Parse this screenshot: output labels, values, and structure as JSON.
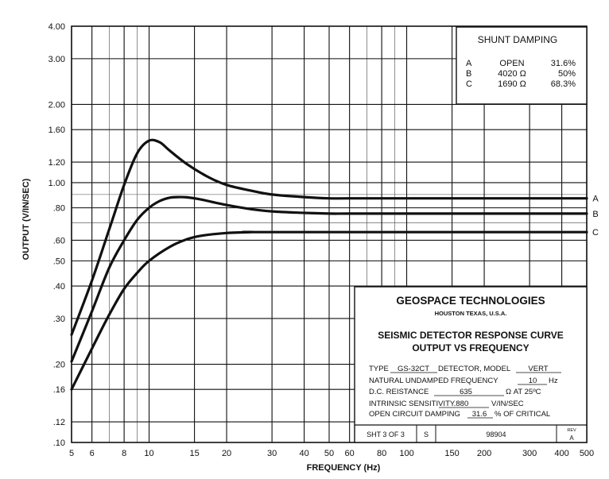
{
  "chart_data": {
    "type": "line",
    "xlabel": "FREQUENCY (Hz)",
    "ylabel": "OUTPUT (V/IN/SEC)",
    "xscale": "log",
    "yscale": "log",
    "xlim": [
      5,
      500
    ],
    "ylim": [
      0.1,
      4.0
    ],
    "grid": true,
    "x_ticks": [
      5,
      6,
      8,
      10,
      15,
      20,
      30,
      40,
      50,
      60,
      80,
      100,
      150,
      200,
      300,
      400,
      500
    ],
    "x_tick_labels": [
      "5",
      "6",
      "8",
      "10",
      "15",
      "20",
      "30",
      "40",
      "50",
      "60",
      "80",
      "100",
      "150",
      "200",
      "300",
      "400",
      "500"
    ],
    "y_ticks": [
      0.1,
      0.12,
      0.16,
      0.2,
      0.3,
      0.4,
      0.5,
      0.6,
      0.8,
      1.0,
      1.2,
      1.6,
      2.0,
      3.0,
      4.0
    ],
    "y_tick_labels": [
      ".10",
      ".12",
      ".16",
      ".20",
      ".30",
      ".40",
      ".50",
      ".60",
      ".80",
      "1.00",
      "1.20",
      "1.60",
      "2.00",
      "3.00",
      "4.00"
    ],
    "series": [
      {
        "name": "A",
        "x": [
          5,
          6,
          7,
          8,
          9,
          10,
          11,
          12,
          14,
          17,
          20,
          25,
          30,
          40,
          50,
          60,
          100,
          500
        ],
        "y": [
          0.26,
          0.42,
          0.66,
          0.98,
          1.3,
          1.45,
          1.43,
          1.33,
          1.18,
          1.05,
          0.98,
          0.93,
          0.9,
          0.88,
          0.87,
          0.87,
          0.87,
          0.87
        ]
      },
      {
        "name": "B",
        "x": [
          5,
          6,
          7,
          8,
          9,
          10,
          11,
          12,
          13,
          14,
          16,
          20,
          25,
          30,
          40,
          50,
          60,
          100,
          500
        ],
        "y": [
          0.205,
          0.32,
          0.47,
          0.6,
          0.72,
          0.8,
          0.85,
          0.875,
          0.88,
          0.878,
          0.86,
          0.82,
          0.79,
          0.775,
          0.765,
          0.76,
          0.76,
          0.76,
          0.76
        ]
      },
      {
        "name": "C",
        "x": [
          5,
          6,
          7,
          8,
          9,
          10,
          12,
          14,
          16,
          20,
          25,
          30,
          500
        ],
        "y": [
          0.16,
          0.23,
          0.31,
          0.39,
          0.45,
          0.5,
          0.565,
          0.605,
          0.625,
          0.64,
          0.645,
          0.645,
          0.645
        ]
      }
    ]
  },
  "shunt_damping": {
    "title": "SHUNT DAMPING",
    "rows": [
      {
        "id": "A",
        "resistance": "OPEN",
        "damping": "31.6%"
      },
      {
        "id": "B",
        "resistance": "4020 Ω",
        "damping": "50%"
      },
      {
        "id": "C",
        "resistance": "1690 Ω",
        "damping": "68.3%"
      }
    ]
  },
  "title_block": {
    "company": "GEOSPACE TECHNOLOGIES",
    "location": "HOUSTON TEXAS, U.S.A.",
    "title_line1": "SEISMIC DETECTOR RESPONSE CURVE",
    "title_line2": "OUTPUT VS FREQUENCY",
    "type_label": "TYPE",
    "type_value": "GS-32CT",
    "detector_label": "DETECTOR,  MODEL",
    "model_value": "VERT",
    "freq_label": "NATURAL UNDAMPED FREQUENCY",
    "freq_value": "10",
    "freq_unit": "Hz",
    "resistance_label": "D.C. REISTANCE",
    "resistance_value": "635",
    "resistance_unit": "Ω AT 25ºC",
    "sensitivity_label": "INTRINSIC SENSITIVITY",
    "sensitivity_value": ".880",
    "sensitivity_unit": "V/IN/SEC",
    "damping_label": "OPEN CIRCUIT DAMPING",
    "damping_value": "31.6",
    "damping_unit": "% OF CRITICAL",
    "sheet": "SHT 3 OF 3",
    "size": "S",
    "drawing_number": "98904",
    "rev_label": "REV",
    "rev_value": "A"
  }
}
